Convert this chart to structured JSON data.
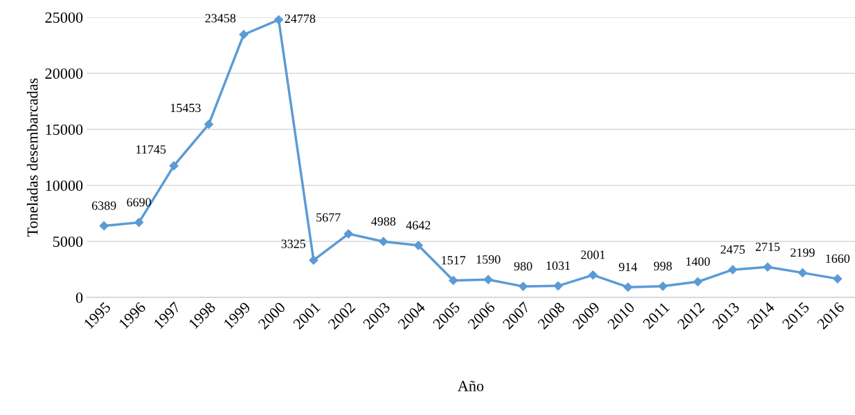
{
  "chart_data": {
    "type": "line",
    "xlabel": "Año",
    "ylabel": "Toneladas desembarcadas",
    "categories": [
      "1995",
      "1996",
      "1997",
      "1998",
      "1999",
      "2000",
      "2001",
      "2002",
      "2003",
      "2004",
      "2005",
      "2006",
      "2007",
      "2008",
      "2009",
      "2010",
      "2011",
      "2012",
      "2013",
      "2014",
      "2015",
      "2016"
    ],
    "series": [
      {
        "color": "#5b9bd5",
        "values": [
          6389,
          6690,
          11745,
          15453,
          23458,
          24778,
          3325,
          5677,
          4988,
          4642,
          1517,
          1590,
          980,
          1031,
          2001,
          914,
          998,
          1400,
          2475,
          2715,
          2199,
          1660
        ]
      }
    ],
    "ylim": [
      0,
      25000
    ],
    "yticks": [
      0,
      5000,
      10000,
      15000,
      20000,
      25000
    ],
    "grid": "y",
    "marker": "diamond",
    "line_style": "solid",
    "data_labels": true
  }
}
